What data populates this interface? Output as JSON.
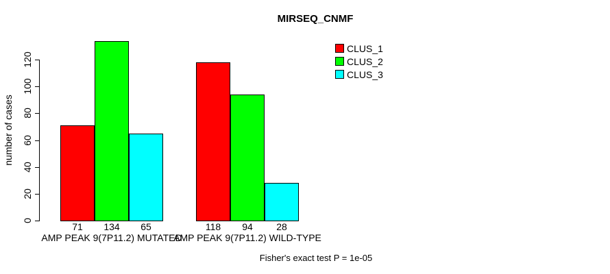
{
  "title": "MIRSEQ_CNMF",
  "footer": {
    "text": "Fisher's exact test P = 1e-05"
  },
  "chart_data": {
    "type": "bar",
    "title": "MIRSEQ_CNMF",
    "xlabel": "",
    "ylabel": "number of cases",
    "categories": [
      "AMP PEAK 9(7P11.2) MUTATED",
      "AMP PEAK 9(7P11.2) WILD-TYPE"
    ],
    "series": [
      {
        "name": "CLUS_1",
        "color": "#ff0000",
        "values": [
          71,
          118
        ]
      },
      {
        "name": "CLUS_2",
        "color": "#00ff00",
        "values": [
          134,
          94
        ]
      },
      {
        "name": "CLUS_3",
        "color": "#00ffff",
        "values": [
          65,
          28
        ]
      }
    ],
    "yticks": [
      0,
      20,
      40,
      60,
      80,
      100,
      120
    ],
    "ylim": [
      0,
      134
    ],
    "bar_values_shown": true,
    "grid": false,
    "legend_position": "top-right"
  },
  "colors": {
    "background": "#ffffff",
    "bar_border": "#000000",
    "axis": "#000000",
    "text": "#000000"
  }
}
